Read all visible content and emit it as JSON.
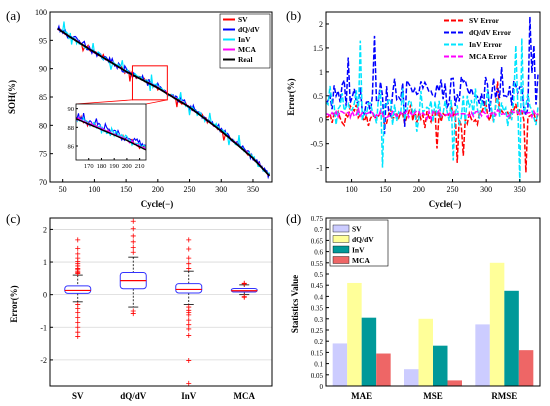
{
  "panels": [
    {
      "label": "(a)",
      "chart_data": {
        "type": "line",
        "xlabel": "Cycle(−)",
        "ylabel": "SOH(%)",
        "xlim": [
          30,
          380
        ],
        "ylim": [
          70,
          100
        ],
        "xticks": [
          50,
          100,
          150,
          200,
          250,
          300,
          350
        ],
        "yticks": [
          70,
          75,
          80,
          85,
          90,
          95,
          100
        ],
        "grid": false,
        "legend": "top-right",
        "series": [
          {
            "name": "SV",
            "color": "#ff0000"
          },
          {
            "name": "dQ/dV",
            "color": "#0000ff"
          },
          {
            "name": "InV",
            "color": "#00e5ff"
          },
          {
            "name": "MCA",
            "color": "#ff00ff"
          },
          {
            "name": "Real",
            "color": "#000000"
          }
        ],
        "real_curve": {
          "x": [
            30,
            60,
            100,
            150,
            200,
            250,
            300,
            350,
            380
          ],
          "y": [
            98.0,
            95.7,
            92.9,
            89.5,
            86.6,
            83.2,
            79.0,
            74.2,
            70.6
          ]
        },
        "inset": {
          "xlim": [
            160,
            215
          ],
          "ylim": [
            84.5,
            90.5
          ],
          "xticks": [
            170,
            180,
            190,
            200,
            210
          ],
          "yticks": [
            86,
            88,
            90
          ],
          "zoom_box": {
            "x": [
              160,
              215
            ],
            "y": [
              84.5,
              90.5
            ]
          }
        }
      }
    },
    {
      "label": "(b)",
      "chart_data": {
        "type": "line",
        "xlabel": "Cycle(−)",
        "ylabel": "Error(%)",
        "xlim": [
          62,
          380
        ],
        "ylim": [
          -1.3,
          2.25
        ],
        "xticks": [
          100,
          150,
          200,
          250,
          300,
          350
        ],
        "yticks": [
          -1,
          -0.5,
          0,
          0.5,
          1,
          1.5,
          2
        ],
        "grid": false,
        "legend": "top-right",
        "line_style": "dashed",
        "series": [
          {
            "name": "SV Error",
            "color": "#ff0000"
          },
          {
            "name": "dQ/dV Error",
            "color": "#0000ff"
          },
          {
            "name": "InV Error",
            "color": "#00e5ff"
          },
          {
            "name": "MCA Error",
            "color": "#ff00ff"
          }
        ]
      }
    },
    {
      "label": "(c)",
      "chart_data": {
        "type": "box",
        "ylabel": "Error(%)",
        "ylim": [
          -2.8,
          2.35
        ],
        "yticks": [
          -2,
          -1,
          0,
          1,
          2
        ],
        "grid": "horizontal",
        "categories": [
          "SV",
          "dQ/dV",
          "InV",
          "MCA"
        ],
        "boxes": [
          {
            "min": -0.22,
            "q1": 0.04,
            "median": 0.13,
            "q3": 0.27,
            "max": 0.6
          },
          {
            "min": -0.38,
            "q1": 0.18,
            "median": 0.43,
            "q3": 0.68,
            "max": 1.15
          },
          {
            "min": -0.3,
            "q1": 0.05,
            "median": 0.16,
            "q3": 0.34,
            "max": 0.72
          },
          {
            "min": 0.0,
            "q1": 0.08,
            "median": 0.12,
            "q3": 0.19,
            "max": 0.3
          }
        ],
        "outliers": [
          [
            0.65,
            0.72,
            0.8,
            0.88,
            0.95,
            1.02,
            1.12,
            1.25,
            1.42,
            1.68,
            -0.3,
            -0.42,
            -0.55,
            -0.7,
            -0.85,
            -1.0,
            -1.15,
            -1.28,
            0.68,
            0.78
          ],
          [
            1.3,
            1.45,
            1.62,
            1.8,
            2.02,
            2.25,
            -0.5,
            -0.58
          ],
          [
            0.8,
            0.95,
            1.12,
            1.4,
            1.68,
            -0.38,
            -0.48,
            -0.62,
            -0.78,
            -0.92,
            -1.05,
            -1.25,
            -2.02,
            -2.72,
            -0.55
          ],
          [
            0.35,
            -0.06,
            -0.08,
            0.33
          ]
        ]
      }
    },
    {
      "label": "(d)",
      "chart_data": {
        "type": "bar",
        "ylabel": "Statistics Value",
        "ylim": [
          0,
          0.75
        ],
        "yticks": [
          0,
          0.05,
          0.1,
          0.15,
          0.2,
          0.25,
          0.3,
          0.35,
          0.4,
          0.45,
          0.5,
          0.55,
          0.6,
          0.65,
          0.7,
          0.75
        ],
        "categories": [
          "MAE",
          "MSE",
          "RMSE"
        ],
        "legend": "top-left",
        "series": [
          {
            "name": "SV",
            "color": "#ccccff",
            "values": [
              0.19,
              0.075,
              0.275
            ]
          },
          {
            "name": "dQ/dV",
            "color": "#ffff99",
            "values": [
              0.46,
              0.3,
              0.55
            ]
          },
          {
            "name": "InV",
            "color": "#009999",
            "values": [
              0.305,
              0.18,
              0.425
            ]
          },
          {
            "name": "MCA",
            "color": "#ee6666",
            "values": [
              0.145,
              0.025,
              0.16
            ]
          }
        ]
      }
    }
  ]
}
